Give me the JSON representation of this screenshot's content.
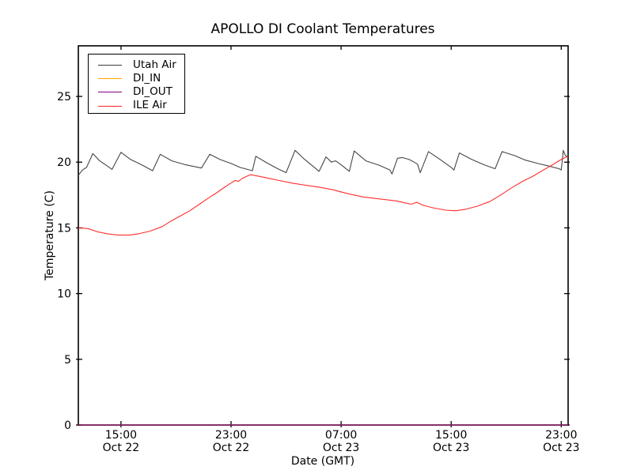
{
  "chart_data": {
    "type": "line",
    "title": "APOLLO DI Coolant Temperatures",
    "xlabel": "Date (GMT)",
    "ylabel": "Temperature (C)",
    "x_unit": "hours since Oct 22 00:00 GMT",
    "xlim": [
      11.9,
      47.5
    ],
    "ylim": [
      0,
      28.85
    ],
    "y_ticks": [
      0,
      5,
      10,
      15,
      20,
      25
    ],
    "x_ticks": [
      {
        "pos": 15,
        "time": "15:00",
        "date": "Oct 22"
      },
      {
        "pos": 23,
        "time": "23:00",
        "date": "Oct 22"
      },
      {
        "pos": 31,
        "time": "07:00",
        "date": "Oct 23"
      },
      {
        "pos": 39,
        "time": "15:00",
        "date": "Oct 23"
      },
      {
        "pos": 47,
        "time": "23:00",
        "date": "Oct 23"
      }
    ],
    "grid": false,
    "legend_position": "upper left",
    "series": [
      {
        "name": "Utah Air",
        "color": "#3c3c3c",
        "width": 1.1,
        "points": [
          [
            11.9,
            19.0
          ],
          [
            12.2,
            19.4
          ],
          [
            12.5,
            19.6
          ],
          [
            12.95,
            20.65
          ],
          [
            13.45,
            20.1
          ],
          [
            13.95,
            19.75
          ],
          [
            14.35,
            19.45
          ],
          [
            15.0,
            20.75
          ],
          [
            15.7,
            20.2
          ],
          [
            16.5,
            19.8
          ],
          [
            17.3,
            19.35
          ],
          [
            17.85,
            20.6
          ],
          [
            18.7,
            20.1
          ],
          [
            19.7,
            19.8
          ],
          [
            20.85,
            19.55
          ],
          [
            21.45,
            20.6
          ],
          [
            22.2,
            20.2
          ],
          [
            23.0,
            19.9
          ],
          [
            23.65,
            19.6
          ],
          [
            24.55,
            19.35
          ],
          [
            24.8,
            20.45
          ],
          [
            25.6,
            19.95
          ],
          [
            26.4,
            19.5
          ],
          [
            27.0,
            19.2
          ],
          [
            27.65,
            20.9
          ],
          [
            28.3,
            20.25
          ],
          [
            29.0,
            19.65
          ],
          [
            29.4,
            19.3
          ],
          [
            29.9,
            20.4
          ],
          [
            30.3,
            20.0
          ],
          [
            30.6,
            20.1
          ],
          [
            31.0,
            19.8
          ],
          [
            31.6,
            19.3
          ],
          [
            31.95,
            20.85
          ],
          [
            32.8,
            20.1
          ],
          [
            33.8,
            19.75
          ],
          [
            34.55,
            19.4
          ],
          [
            34.7,
            19.1
          ],
          [
            35.1,
            20.3
          ],
          [
            35.45,
            20.35
          ],
          [
            35.95,
            20.2
          ],
          [
            36.3,
            20.0
          ],
          [
            36.55,
            19.85
          ],
          [
            36.75,
            19.2
          ],
          [
            37.35,
            20.8
          ],
          [
            38.2,
            20.2
          ],
          [
            39.0,
            19.6
          ],
          [
            39.2,
            19.4
          ],
          [
            39.6,
            20.7
          ],
          [
            40.5,
            20.2
          ],
          [
            41.4,
            19.8
          ],
          [
            42.2,
            19.5
          ],
          [
            42.7,
            20.8
          ],
          [
            43.6,
            20.5
          ],
          [
            44.4,
            20.15
          ],
          [
            45.3,
            19.9
          ],
          [
            46.1,
            19.7
          ],
          [
            46.85,
            19.5
          ],
          [
            47.0,
            19.4
          ],
          [
            47.15,
            20.9
          ],
          [
            47.3,
            20.5
          ],
          [
            47.5,
            20.4
          ]
        ]
      },
      {
        "name": "DI_IN",
        "color": "#ffa500",
        "width": 1.2,
        "points": [
          [
            11.9,
            0
          ],
          [
            47.5,
            0
          ]
        ]
      },
      {
        "name": "DI_OUT",
        "color": "#800080",
        "width": 1.2,
        "points": [
          [
            11.9,
            0
          ],
          [
            47.5,
            0
          ]
        ]
      },
      {
        "name": "ILE Air",
        "color": "#ff2222",
        "width": 1.1,
        "points": [
          [
            11.9,
            15.0
          ],
          [
            12.6,
            14.95
          ],
          [
            13.3,
            14.7
          ],
          [
            14.0,
            14.55
          ],
          [
            14.8,
            14.45
          ],
          [
            15.6,
            14.45
          ],
          [
            16.3,
            14.55
          ],
          [
            17.1,
            14.75
          ],
          [
            18.0,
            15.1
          ],
          [
            18.6,
            15.5
          ],
          [
            19.3,
            15.9
          ],
          [
            20.0,
            16.3
          ],
          [
            20.7,
            16.8
          ],
          [
            21.4,
            17.3
          ],
          [
            22.0,
            17.7
          ],
          [
            22.4,
            18.0
          ],
          [
            22.9,
            18.35
          ],
          [
            23.3,
            18.6
          ],
          [
            23.55,
            18.55
          ],
          [
            23.8,
            18.75
          ],
          [
            24.4,
            19.05
          ],
          [
            24.9,
            18.95
          ],
          [
            25.6,
            18.8
          ],
          [
            26.5,
            18.6
          ],
          [
            27.5,
            18.4
          ],
          [
            28.4,
            18.25
          ],
          [
            29.4,
            18.1
          ],
          [
            30.4,
            17.9
          ],
          [
            31.5,
            17.6
          ],
          [
            32.6,
            17.35
          ],
          [
            33.8,
            17.2
          ],
          [
            35.0,
            17.05
          ],
          [
            36.1,
            16.8
          ],
          [
            36.5,
            16.95
          ],
          [
            37.0,
            16.7
          ],
          [
            37.8,
            16.5
          ],
          [
            38.6,
            16.35
          ],
          [
            39.3,
            16.3
          ],
          [
            40.0,
            16.4
          ],
          [
            40.9,
            16.65
          ],
          [
            41.8,
            17.0
          ],
          [
            42.6,
            17.5
          ],
          [
            43.4,
            18.05
          ],
          [
            44.2,
            18.55
          ],
          [
            44.9,
            18.9
          ],
          [
            45.7,
            19.4
          ],
          [
            46.3,
            19.75
          ],
          [
            47.0,
            20.2
          ],
          [
            47.5,
            20.45
          ]
        ]
      }
    ]
  }
}
